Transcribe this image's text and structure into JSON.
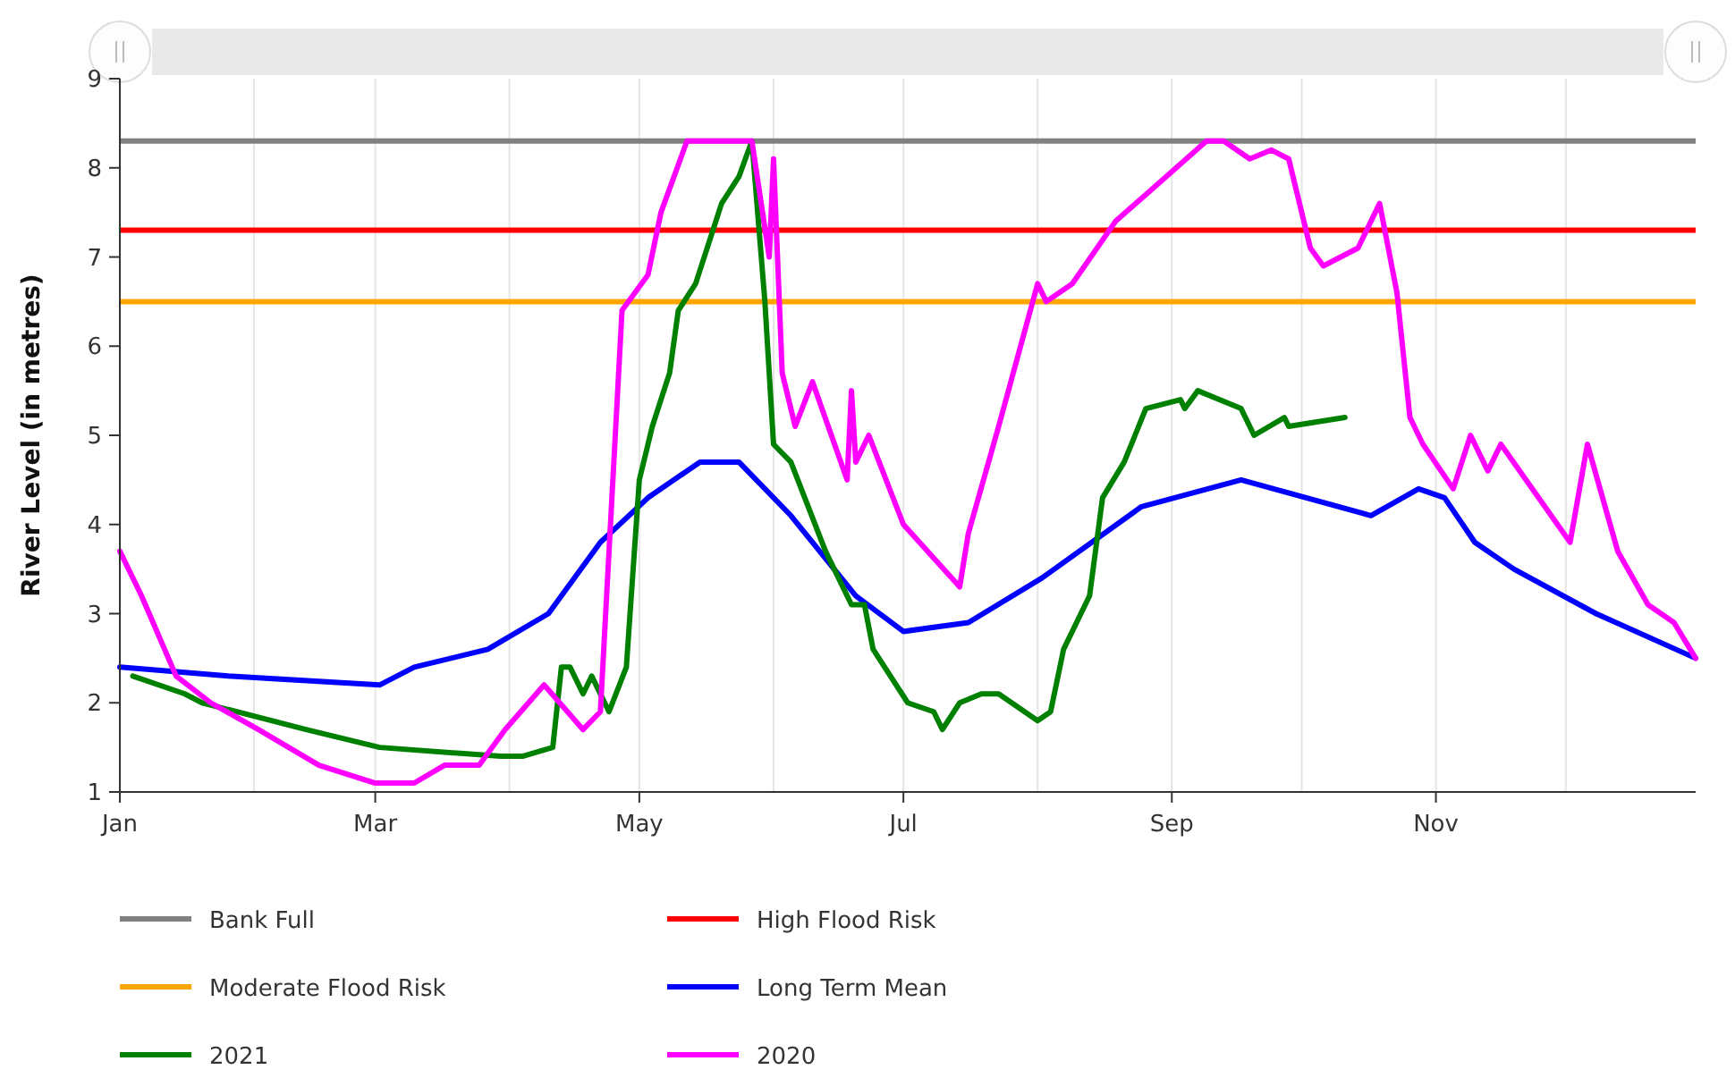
{
  "chart_data": {
    "type": "line",
    "ylabel": "River Level (in metres)",
    "xlim": [
      "--01-01",
      "--12-31"
    ],
    "xticks": [
      {
        "value": "--01-01",
        "label": "Jan"
      },
      {
        "value": "--02-01",
        "label": null
      },
      {
        "value": "--03-01",
        "label": "Mar"
      },
      {
        "value": "--04-01",
        "label": null
      },
      {
        "value": "--05-01",
        "label": "May"
      },
      {
        "value": "--06-01",
        "label": null
      },
      {
        "value": "--07-01",
        "label": "Jul"
      },
      {
        "value": "--08-01",
        "label": null
      },
      {
        "value": "--09-01",
        "label": "Sep"
      },
      {
        "value": "--10-01",
        "label": null
      },
      {
        "value": "--11-01",
        "label": "Nov"
      },
      {
        "value": "--12-01",
        "label": null
      }
    ],
    "ylim": [
      1,
      9
    ],
    "yticks": [
      1,
      2,
      3,
      4,
      5,
      6,
      7,
      8,
      9
    ],
    "grid": "x",
    "legend": "bottom",
    "line_style": "solid",
    "ref_lines": [
      {
        "axis": "y",
        "value": 8.3,
        "label": "Bank Full",
        "color": "#808080"
      },
      {
        "axis": "y",
        "value": 7.3,
        "label": "High Flood Risk",
        "color": "#ff0000"
      },
      {
        "axis": "y",
        "value": 6.5,
        "label": "Moderate Flood Risk",
        "color": "#ffa500"
      }
    ],
    "series": [
      {
        "name": "Long Term Mean",
        "color": "#0000ff",
        "x": [
          "--01-01",
          "--01-26",
          "--03-02",
          "--03-10",
          "--03-27",
          "--04-10",
          "--04-22",
          "--05-03",
          "--05-15",
          "--05-24",
          "--06-05",
          "--06-20",
          "--07-01",
          "--07-16",
          "--08-02",
          "--08-25",
          "--09-17",
          "--10-17",
          "--10-28",
          "--11-03",
          "--11-10",
          "--11-19",
          "--12-08",
          "--12-31"
        ],
        "values": [
          2.4,
          2.3,
          2.2,
          2.4,
          2.6,
          3.0,
          3.8,
          4.3,
          4.7,
          4.7,
          4.1,
          3.2,
          2.8,
          2.9,
          3.4,
          4.2,
          4.5,
          4.1,
          4.4,
          4.3,
          3.8,
          3.5,
          3.0,
          2.5
        ]
      },
      {
        "name": "2021",
        "color": "#008000",
        "x": [
          "--01-04",
          "--01-16",
          "--01-20",
          "--02-13",
          "--03-02",
          "--03-30",
          "--04-04",
          "--04-11",
          "--04-13",
          "--04-15",
          "--04-18",
          "--04-20",
          "--04-24",
          "--04-28",
          "--05-01",
          "--05-04",
          "--05-08",
          "--05-10",
          "--05-14",
          "--05-20",
          "--05-24",
          "--05-27",
          "--05-30",
          "--06-01",
          "--06-05",
          "--06-13",
          "--06-19",
          "--06-22",
          "--06-24",
          "--07-02",
          "--07-08",
          "--07-10",
          "--07-14",
          "--07-19",
          "--07-23",
          "--08-01",
          "--08-04",
          "--08-07",
          "--08-13",
          "--08-16",
          "--08-21",
          "--08-26",
          "--09-03",
          "--09-04",
          "--09-07",
          "--09-17",
          "--09-20",
          "--09-27",
          "--09-28",
          "--10-11"
        ],
        "values": [
          2.3,
          2.1,
          2.0,
          1.7,
          1.5,
          1.4,
          1.4,
          1.5,
          2.4,
          2.4,
          2.1,
          2.3,
          1.9,
          2.4,
          4.5,
          5.1,
          5.7,
          6.4,
          6.7,
          7.6,
          7.9,
          8.3,
          6.5,
          4.9,
          4.7,
          3.7,
          3.1,
          3.1,
          2.6,
          2.0,
          1.9,
          1.7,
          2.0,
          2.1,
          2.1,
          1.8,
          1.9,
          2.6,
          3.2,
          4.3,
          4.7,
          5.3,
          5.4,
          5.3,
          5.5,
          5.3,
          5.0,
          5.2,
          5.1,
          5.2
        ]
      },
      {
        "name": "2020",
        "color": "#ff00ff",
        "x": [
          "--01-01",
          "--01-06",
          "--01-14",
          "--01-22",
          "--02-02",
          "--02-16",
          "--03-01",
          "--03-10",
          "--03-17",
          "--03-25",
          "--03-31",
          "--04-09",
          "--04-18",
          "--04-22",
          "--04-24",
          "--04-27",
          "--05-03",
          "--05-06",
          "--05-09",
          "--05-12",
          "--05-27",
          "--05-31",
          "--06-01",
          "--06-03",
          "--06-06",
          "--06-10",
          "--06-18",
          "--06-19",
          "--06-20",
          "--06-23",
          "--07-01",
          "--07-14",
          "--07-16",
          "--07-23",
          "--08-01",
          "--08-03",
          "--08-09",
          "--08-19",
          "--08-26",
          "--09-02",
          "--09-09",
          "--09-13",
          "--09-19",
          "--09-24",
          "--09-28",
          "--10-03",
          "--10-06",
          "--10-14",
          "--10-19",
          "--10-23",
          "--10-26",
          "--10-29",
          "--11-05",
          "--11-09",
          "--11-13",
          "--11-16",
          "--12-02",
          "--12-06",
          "--12-13",
          "--12-20",
          "--12-26",
          "--12-31"
        ],
        "values": [
          3.7,
          3.2,
          2.3,
          2.0,
          1.7,
          1.3,
          1.1,
          1.1,
          1.3,
          1.3,
          1.7,
          2.2,
          1.7,
          1.9,
          3.7,
          6.4,
          6.8,
          7.5,
          7.9,
          8.3,
          8.3,
          7.0,
          8.1,
          5.7,
          5.1,
          5.6,
          4.5,
          5.5,
          4.7,
          5.0,
          4.0,
          3.3,
          3.9,
          5.1,
          6.7,
          6.5,
          6.7,
          7.4,
          7.7,
          8.0,
          8.3,
          8.3,
          8.1,
          8.2,
          8.1,
          7.1,
          6.9,
          7.1,
          7.6,
          6.6,
          5.2,
          4.9,
          4.4,
          5.0,
          4.6,
          4.9,
          3.8,
          4.9,
          3.7,
          3.1,
          2.9,
          2.5
        ]
      }
    ]
  }
}
